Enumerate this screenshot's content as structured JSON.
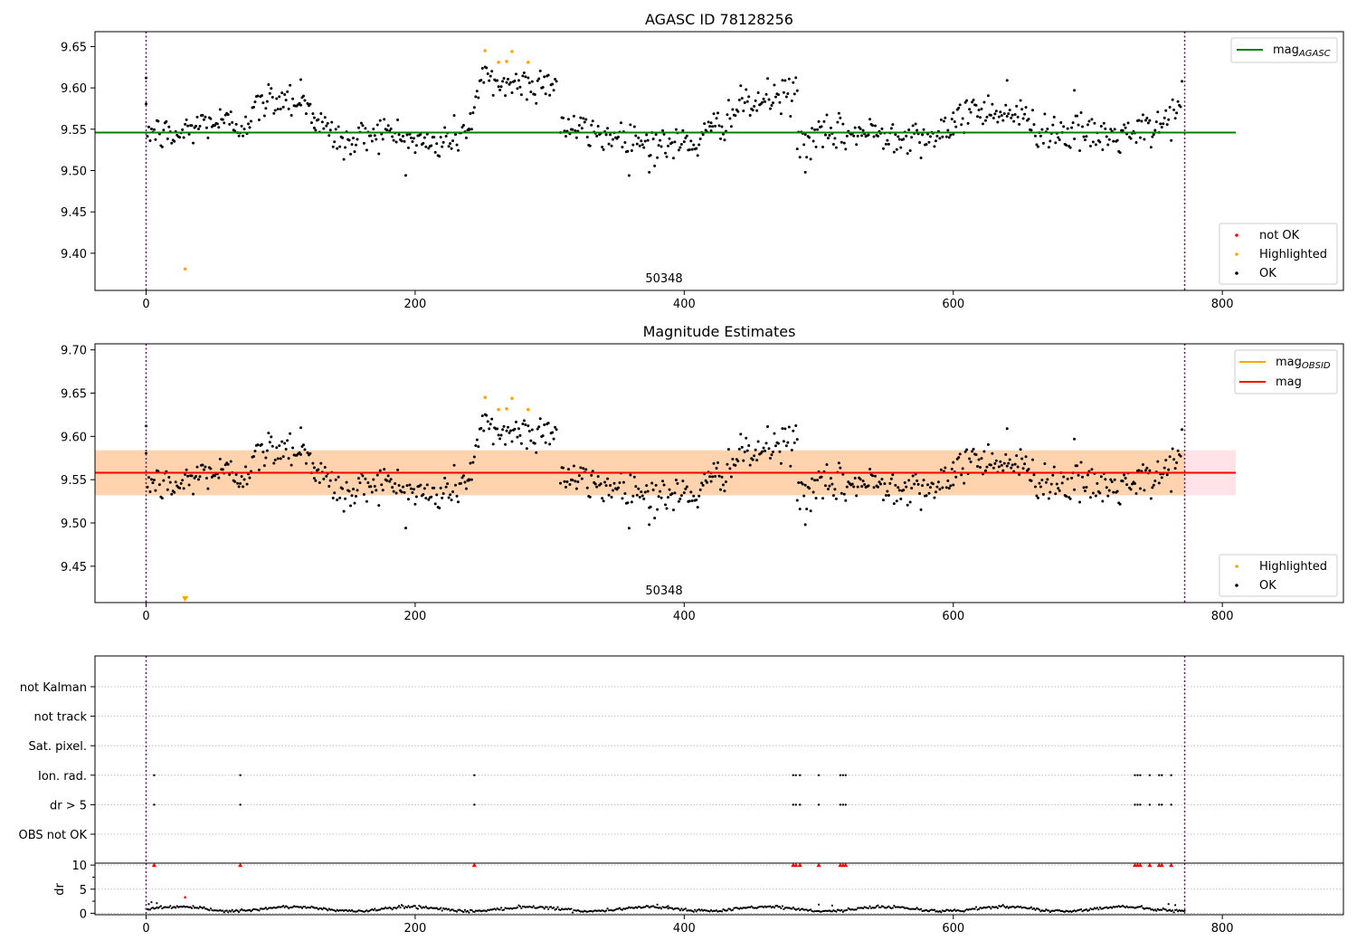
{
  "chart_data": [
    {
      "type": "scatter",
      "title": "AGASC ID 78128256",
      "xlabel": "",
      "ylabel": "",
      "xlim": [
        -38,
        890
      ],
      "ylim": [
        9.355,
        9.668
      ],
      "x_ticks": [
        0,
        200,
        400,
        600,
        800
      ],
      "y_ticks": [
        9.4,
        9.45,
        9.5,
        9.55,
        9.6,
        9.65
      ],
      "y_tick_labels": [
        "9.40",
        "9.45",
        "9.50",
        "9.55",
        "9.60",
        "9.65"
      ],
      "grid": false,
      "obsid_label": {
        "text": "50348",
        "x": 385
      },
      "vlines": [
        0,
        772
      ],
      "hline": {
        "name": "mag_AGASC",
        "value": 9.546,
        "x_range": [
          -38,
          810
        ],
        "color": "#008000"
      },
      "legend_lines": {
        "position": "top-right",
        "entries": [
          {
            "base": "mag",
            "sub": "AGASC",
            "color": "#008000"
          }
        ]
      },
      "legend_points": {
        "position": "bottom-right",
        "entries": [
          {
            "label": "not OK",
            "color": "#ff0000"
          },
          {
            "label": "Highlighted",
            "color": "#ffa500"
          },
          {
            "label": "OK",
            "color": "#000000"
          }
        ]
      },
      "highlighted_points": [
        [
          29,
          9.381
        ],
        [
          252,
          9.645
        ],
        [
          262,
          9.631
        ],
        [
          268,
          9.632
        ],
        [
          272,
          9.644
        ],
        [
          284,
          9.631
        ]
      ],
      "ok_points": {
        "segments": [
          {
            "x0": 0,
            "x1": 125,
            "knots": [
              [
                0,
                9.55
              ],
              [
                20,
                9.54
              ],
              [
                45,
                9.56
              ],
              [
                70,
                9.555
              ],
              [
                90,
                9.585
              ],
              [
                105,
                9.59
              ],
              [
                125,
                9.575
              ]
            ]
          },
          {
            "x0": 125,
            "x1": 240,
            "knots": [
              [
                125,
                9.56
              ],
              [
                150,
                9.53
              ],
              [
                170,
                9.55
              ],
              [
                200,
                9.535
              ],
              [
                215,
                9.53
              ],
              [
                240,
                9.55
              ]
            ]
          },
          {
            "x0": 240,
            "x1": 305,
            "knots": [
              [
                240,
                9.555
              ],
              [
                250,
                9.61
              ],
              [
                270,
                9.605
              ],
              [
                290,
                9.605
              ],
              [
                305,
                9.61
              ]
            ]
          },
          {
            "x0": 308,
            "x1": 420,
            "knots": [
              [
                308,
                9.555
              ],
              [
                330,
                9.545
              ],
              [
                360,
                9.54
              ],
              [
                385,
                9.53
              ],
              [
                410,
                9.535
              ],
              [
                420,
                9.545
              ]
            ]
          },
          {
            "x0": 420,
            "x1": 484,
            "knots": [
              [
                420,
                9.55
              ],
              [
                440,
                9.575
              ],
              [
                460,
                9.585
              ],
              [
                484,
                9.595
              ]
            ]
          },
          {
            "x0": 484,
            "x1": 600,
            "knots": [
              [
                484,
                9.535
              ],
              [
                520,
                9.545
              ],
              [
                560,
                9.545
              ],
              [
                600,
                9.54
              ]
            ]
          },
          {
            "x0": 600,
            "x1": 770,
            "knots": [
              [
                600,
                9.57
              ],
              [
                630,
                9.575
              ],
              [
                650,
                9.565
              ],
              [
                665,
                9.55
              ],
              [
                690,
                9.545
              ],
              [
                720,
                9.54
              ],
              [
                750,
                9.55
              ],
              [
                770,
                9.58
              ]
            ]
          }
        ],
        "spread": 0.011,
        "outliers": [
          [
            0,
            9.612
          ],
          [
            374,
            9.498
          ],
          [
            490,
            9.498
          ],
          [
            690,
            9.597
          ],
          [
            115,
            9.61
          ],
          [
            640,
            9.609
          ]
        ]
      }
    },
    {
      "type": "scatter",
      "title": "Magnitude Estimates",
      "xlabel": "",
      "ylabel": "",
      "xlim": [
        -38,
        890
      ],
      "ylim": [
        9.408,
        9.707
      ],
      "x_ticks": [
        0,
        200,
        400,
        600,
        800
      ],
      "y_ticks": [
        9.45,
        9.5,
        9.55,
        9.6,
        9.65,
        9.7
      ],
      "y_tick_labels": [
        "9.45",
        "9.50",
        "9.55",
        "9.60",
        "9.65",
        "9.70"
      ],
      "grid": false,
      "obsid_label": {
        "text": "50348",
        "x": 385
      },
      "vlines": [
        0,
        772
      ],
      "bands": [
        {
          "y0": 9.532,
          "y1": 9.584,
          "x_range": [
            -38,
            810
          ],
          "color": "#ffc0cb",
          "opacity": 0.45
        },
        {
          "y0": 9.532,
          "y1": 9.584,
          "x_range": [
            -38,
            772
          ],
          "color": "#ffa500",
          "opacity": 0.25
        }
      ],
      "hline": {
        "name": "mag",
        "value": 9.558,
        "x_range": [
          -38,
          810
        ],
        "color": "#ff0000"
      },
      "obsid_line": {
        "value": 9.558,
        "x_range": [
          0,
          772
        ],
        "color": "#ffa500"
      },
      "legend_lines": {
        "position": "top-right",
        "entries": [
          {
            "base": "mag",
            "sub": "OBSID",
            "color": "#ffa500"
          },
          {
            "base": "mag",
            "sub": "",
            "color": "#ff0000"
          }
        ]
      },
      "legend_points": {
        "position": "bottom-right",
        "entries": [
          {
            "label": "Highlighted",
            "color": "#ffa500"
          },
          {
            "label": "OK",
            "color": "#000000"
          }
        ]
      },
      "offscale_marker": {
        "x": 29,
        "color": "#ffa500"
      },
      "highlighted_points": [
        [
          252,
          9.645
        ],
        [
          262,
          9.631
        ],
        [
          268,
          9.632
        ],
        [
          272,
          9.644
        ],
        [
          284,
          9.631
        ]
      ],
      "ok_points": {
        "segments": [
          {
            "x0": 0,
            "x1": 125,
            "knots": [
              [
                0,
                9.55
              ],
              [
                20,
                9.54
              ],
              [
                45,
                9.56
              ],
              [
                70,
                9.555
              ],
              [
                90,
                9.585
              ],
              [
                105,
                9.59
              ],
              [
                125,
                9.575
              ]
            ]
          },
          {
            "x0": 125,
            "x1": 240,
            "knots": [
              [
                125,
                9.56
              ],
              [
                150,
                9.53
              ],
              [
                170,
                9.55
              ],
              [
                200,
                9.535
              ],
              [
                215,
                9.53
              ],
              [
                240,
                9.55
              ]
            ]
          },
          {
            "x0": 240,
            "x1": 305,
            "knots": [
              [
                240,
                9.555
              ],
              [
                250,
                9.61
              ],
              [
                270,
                9.605
              ],
              [
                290,
                9.605
              ],
              [
                305,
                9.61
              ]
            ]
          },
          {
            "x0": 308,
            "x1": 420,
            "knots": [
              [
                308,
                9.555
              ],
              [
                330,
                9.545
              ],
              [
                360,
                9.54
              ],
              [
                385,
                9.53
              ],
              [
                410,
                9.535
              ],
              [
                420,
                9.545
              ]
            ]
          },
          {
            "x0": 420,
            "x1": 484,
            "knots": [
              [
                420,
                9.55
              ],
              [
                440,
                9.575
              ],
              [
                460,
                9.585
              ],
              [
                484,
                9.595
              ]
            ]
          },
          {
            "x0": 484,
            "x1": 600,
            "knots": [
              [
                484,
                9.535
              ],
              [
                520,
                9.545
              ],
              [
                560,
                9.545
              ],
              [
                600,
                9.54
              ]
            ]
          },
          {
            "x0": 600,
            "x1": 770,
            "knots": [
              [
                600,
                9.57
              ],
              [
                630,
                9.575
              ],
              [
                650,
                9.565
              ],
              [
                665,
                9.55
              ],
              [
                690,
                9.545
              ],
              [
                720,
                9.54
              ],
              [
                750,
                9.55
              ],
              [
                770,
                9.58
              ]
            ]
          }
        ],
        "spread": 0.011,
        "outliers": [
          [
            0,
            9.612
          ],
          [
            374,
            9.498
          ],
          [
            490,
            9.498
          ],
          [
            690,
            9.597
          ],
          [
            115,
            9.61
          ],
          [
            640,
            9.609
          ]
        ]
      }
    },
    {
      "type": "scatter",
      "title": "",
      "xlabel": "",
      "ylabel": "",
      "xlim": [
        -38,
        890
      ],
      "x_ticks": [
        0,
        200,
        400,
        600,
        800
      ],
      "grid": true,
      "vlines": [
        0,
        772
      ],
      "flag_rows": [
        "not Kalman",
        "not track",
        "Sat. pixel.",
        "Ion. rad.",
        "dr > 5",
        "OBS not OK"
      ],
      "flag_points": {
        "Ion. rad.": [
          6,
          70,
          244,
          481,
          483,
          486,
          500,
          516,
          518,
          520,
          735,
          737,
          739,
          746,
          753,
          755,
          762
        ],
        "dr > 5": [
          6,
          70,
          244,
          481,
          483,
          486,
          500,
          516,
          518,
          520,
          735,
          737,
          739,
          746,
          753,
          755,
          762
        ]
      }
    },
    {
      "type": "scatter",
      "title": "",
      "xlabel": "",
      "ylabel": "dr",
      "xlim": [
        -38,
        890
      ],
      "ylim": [
        -0.3,
        10.4
      ],
      "y_ticks": [
        0,
        5,
        10
      ],
      "y_tick_labels": [
        "0",
        "5",
        "10"
      ],
      "vlines": [
        0,
        772
      ],
      "capped_points": [
        6,
        70,
        244,
        481,
        483,
        486,
        500,
        516,
        518,
        520,
        735,
        737,
        739,
        746,
        753,
        755,
        762
      ],
      "capped_value": 10,
      "baseline": {
        "x0": 0,
        "x1": 772,
        "mean": 0.9,
        "amplitude": 0.45,
        "noise": 0.15
      },
      "extra_points": [
        [
          2,
          1.9
        ],
        [
          4,
          2.3
        ],
        [
          8,
          2.1
        ],
        [
          29,
          3.3
        ],
        [
          380,
          1.8
        ],
        [
          388,
          1.5
        ],
        [
          500,
          1.8
        ],
        [
          510,
          1.6
        ],
        [
          760,
          1.9
        ],
        [
          765,
          1.7
        ]
      ],
      "extra_red": [
        [
          29,
          3.3
        ]
      ]
    }
  ]
}
